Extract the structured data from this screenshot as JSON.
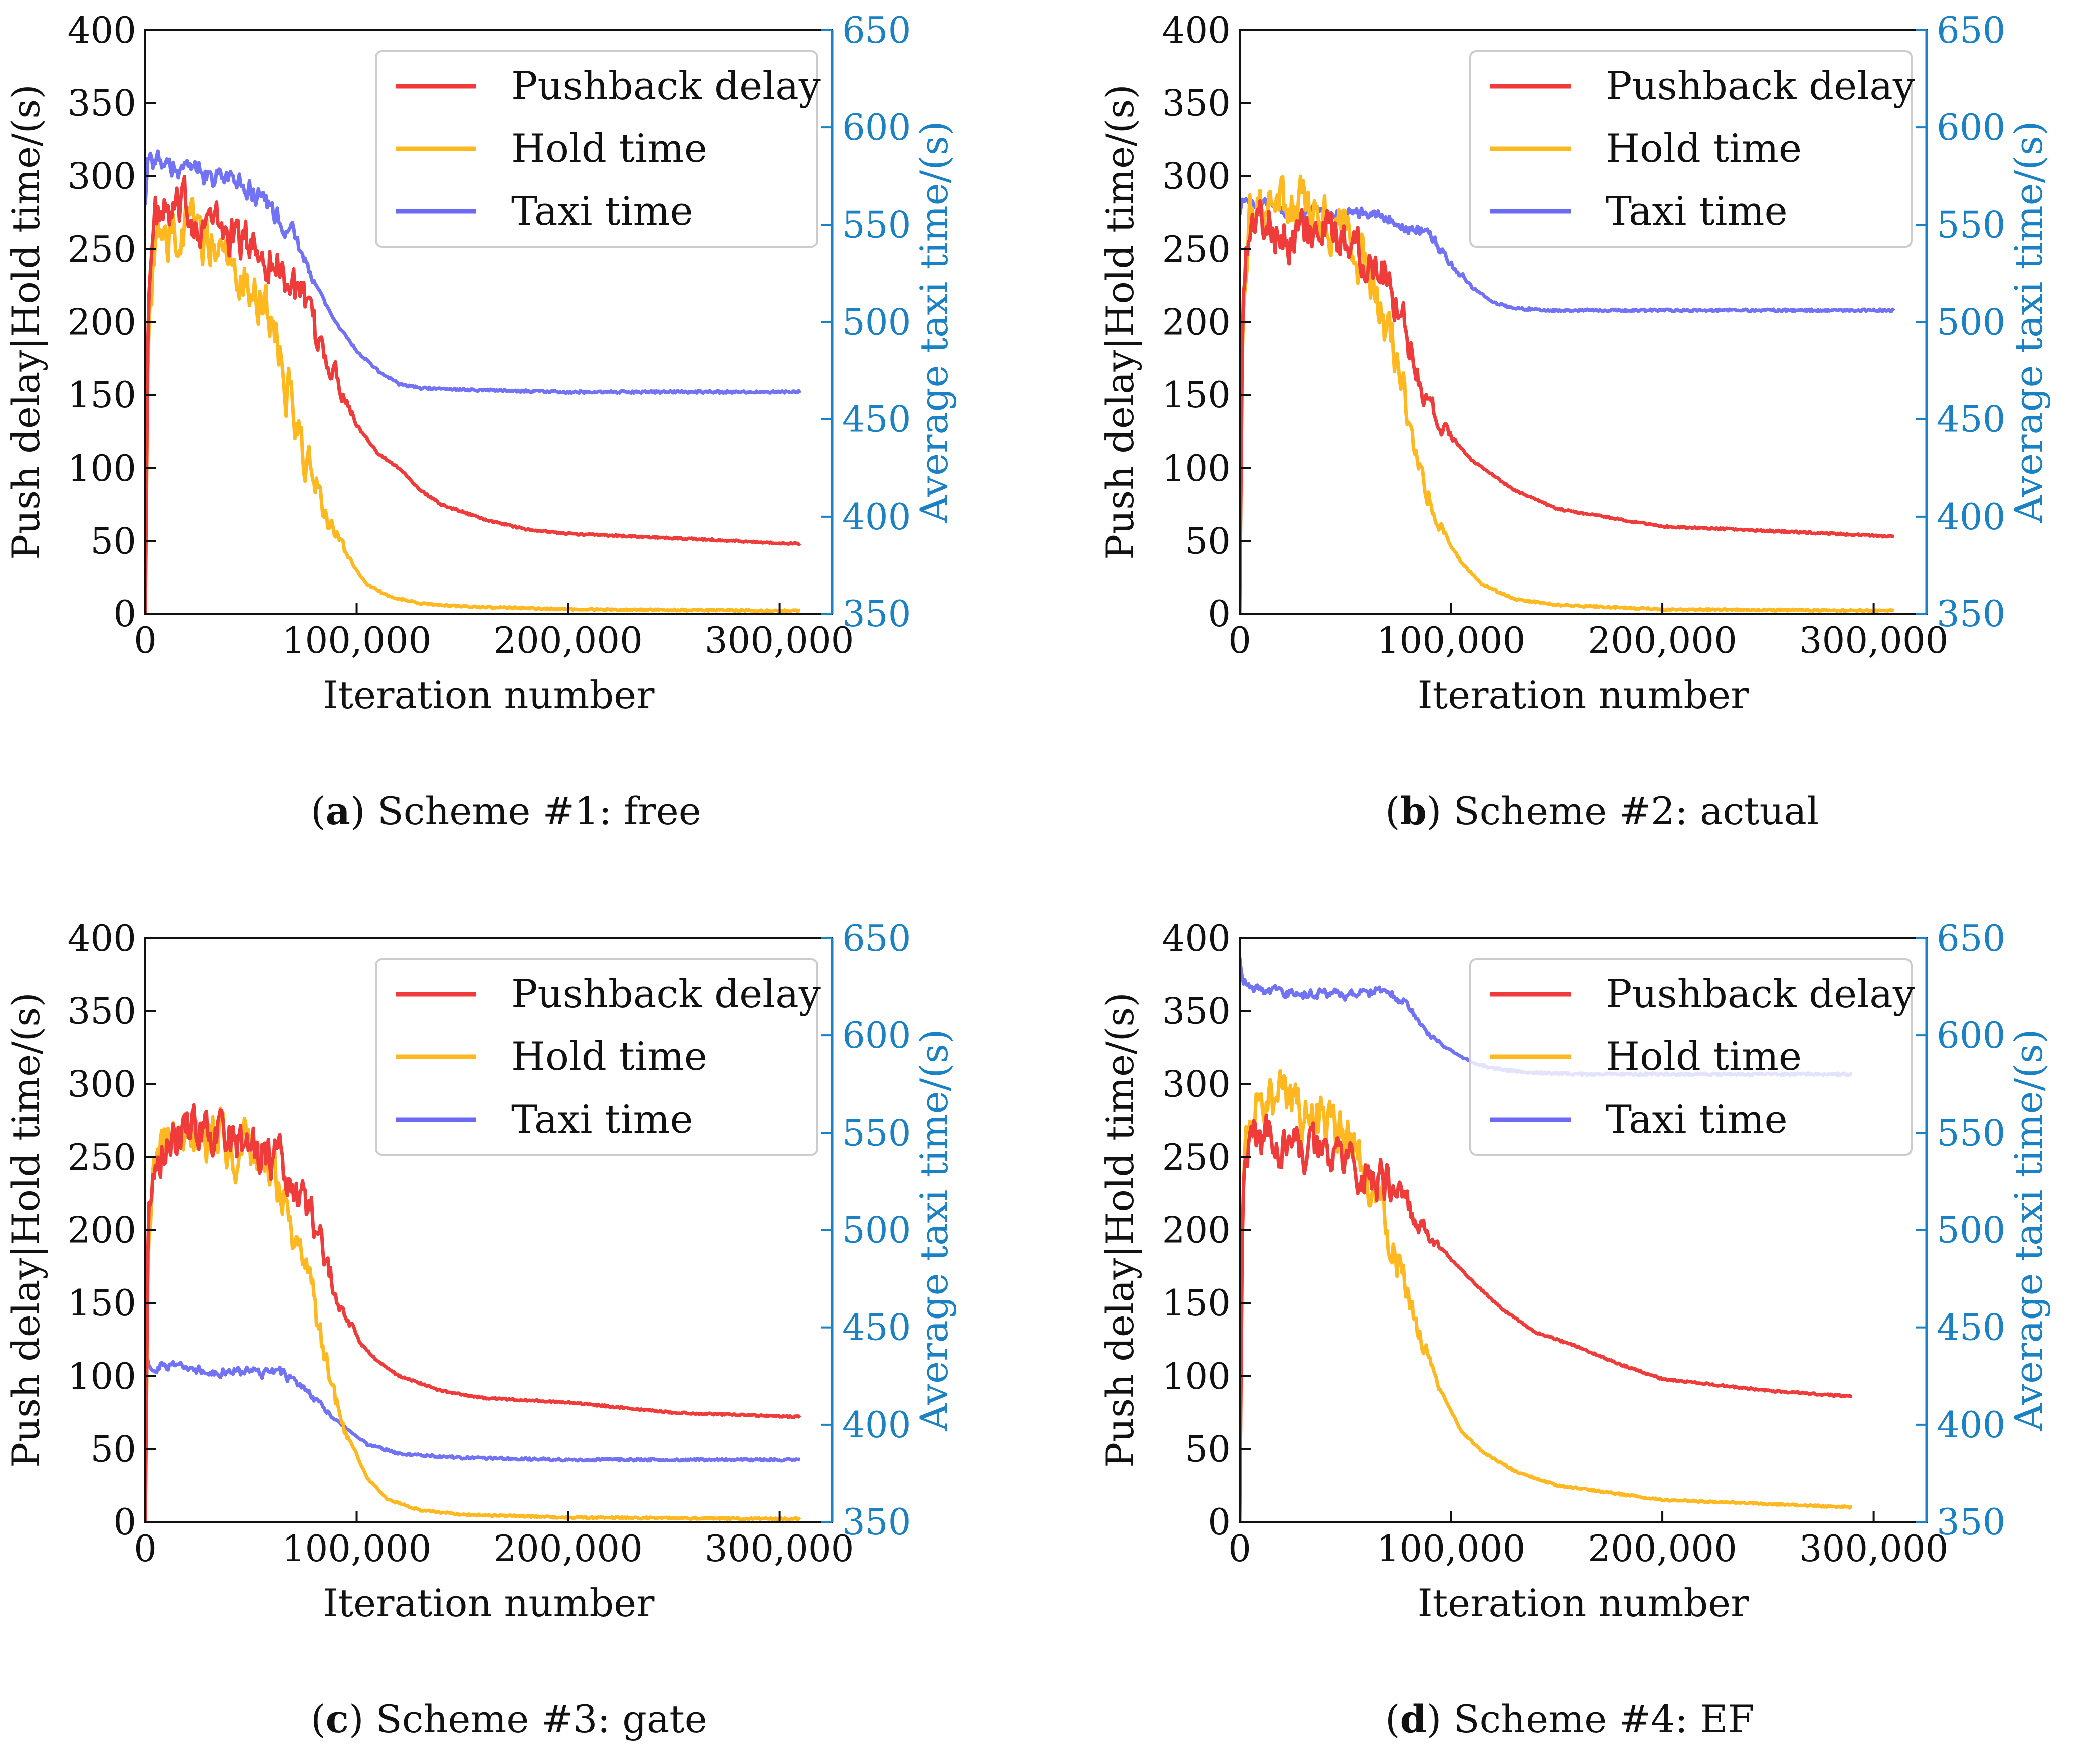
{
  "colors": {
    "pushback": "#f03b3b",
    "hold": "#ffb820",
    "taxi": "#6a6af5",
    "right_axis": "#1a82c4",
    "axis": "#111111"
  },
  "chart_data": [
    {
      "type": "line",
      "caption_letter": "a",
      "caption_text": ") Scheme #1: free",
      "xlabel": "Iteration number",
      "ylabel_left": "Push delay|Hold time/(s)",
      "ylabel_right": "Average taxi time/(s)",
      "xlim": [
        0,
        325000
      ],
      "ylim_left": [
        0,
        400
      ],
      "ylim_right": [
        350,
        650
      ],
      "xticks": [
        0,
        100000,
        200000,
        300000
      ],
      "xtick_labels": [
        "0",
        "100,000",
        "200,000",
        "300,000"
      ],
      "yticks_left": [
        0,
        50,
        100,
        150,
        200,
        250,
        300,
        350,
        400
      ],
      "ytick_labels_left": [
        "0",
        "50",
        "100",
        "150",
        "200",
        "250",
        "300",
        "350",
        "400"
      ],
      "yticks_right": [
        350,
        400,
        450,
        500,
        550,
        600,
        650
      ],
      "ytick_labels_right": [
        "350",
        "400",
        "450",
        "500",
        "550",
        "600",
        "650"
      ],
      "legend": [
        "Pushback delay",
        "Hold time",
        "Taxi time"
      ],
      "legend_position": "top-right",
      "series": [
        {
          "name": "Pushback delay",
          "axis": "left",
          "noise": 30,
          "noise_end": 75000,
          "x": [
            0,
            1500,
            5000,
            20000,
            40000,
            60000,
            70000,
            80000,
            90000,
            100000,
            110000,
            120000,
            130000,
            140000,
            160000,
            180000,
            200000,
            250000,
            310000
          ],
          "y": [
            0,
            230,
            270,
            275,
            260,
            245,
            225,
            190,
            165,
            130,
            110,
            100,
            85,
            75,
            65,
            58,
            55,
            52,
            48
          ]
        },
        {
          "name": "Hold time",
          "axis": "left",
          "noise": 35,
          "noise_end": 70000,
          "x": [
            0,
            1500,
            5000,
            20000,
            40000,
            55000,
            65000,
            75000,
            85000,
            95000,
            105000,
            115000,
            130000,
            150000,
            200000,
            310000
          ],
          "y": [
            0,
            210,
            255,
            262,
            250,
            220,
            170,
            110,
            70,
            40,
            20,
            12,
            7,
            5,
            3,
            2
          ]
        },
        {
          "name": "Taxi time",
          "axis": "right",
          "noise": 12,
          "noise_end": 60000,
          "x": [
            0,
            1500,
            5000,
            20000,
            40000,
            55000,
            70000,
            80000,
            90000,
            100000,
            110000,
            120000,
            130000,
            155000,
            200000,
            310000
          ],
          "y": [
            560,
            590,
            580,
            578,
            572,
            565,
            545,
            520,
            500,
            485,
            475,
            468,
            466,
            465,
            464,
            464
          ]
        }
      ]
    },
    {
      "type": "line",
      "caption_letter": "b",
      "caption_text": ") Scheme #2: actual",
      "xlabel": "Iteration number",
      "ylabel_left": "Push delay|Hold time/(s)",
      "ylabel_right": "Average taxi time/(s)",
      "xlim": [
        0,
        325000
      ],
      "ylim_left": [
        0,
        400
      ],
      "ylim_right": [
        350,
        650
      ],
      "xticks": [
        0,
        100000,
        200000,
        300000
      ],
      "xtick_labels": [
        "0",
        "100,000",
        "200,000",
        "300,000"
      ],
      "yticks_left": [
        0,
        50,
        100,
        150,
        200,
        250,
        300,
        350,
        400
      ],
      "ytick_labels_left": [
        "0",
        "50",
        "100",
        "150",
        "200",
        "250",
        "300",
        "350",
        "400"
      ],
      "yticks_right": [
        350,
        400,
        450,
        500,
        550,
        600,
        650
      ],
      "ytick_labels_right": [
        "350",
        "400",
        "450",
        "500",
        "550",
        "600",
        "650"
      ],
      "legend": [
        "Pushback delay",
        "Hold time",
        "Taxi time"
      ],
      "legend_position": "top-right",
      "series": [
        {
          "name": "Pushback delay",
          "axis": "left",
          "noise": 30,
          "noise_end": 75000,
          "x": [
            0,
            1500,
            5000,
            20000,
            40000,
            60000,
            70000,
            78000,
            85000,
            95000,
            110000,
            130000,
            150000,
            200000,
            250000,
            310000
          ],
          "y": [
            0,
            230,
            270,
            262,
            258,
            250,
            235,
            200,
            160,
            130,
            105,
            85,
            72,
            60,
            57,
            53
          ]
        },
        {
          "name": "Hold time",
          "axis": "left",
          "noise": 35,
          "noise_end": 72000,
          "x": [
            0,
            1500,
            5000,
            20000,
            40000,
            55000,
            65000,
            75000,
            85000,
            95000,
            105000,
            115000,
            130000,
            150000,
            200000,
            310000
          ],
          "y": [
            0,
            220,
            270,
            282,
            270,
            250,
            215,
            170,
            100,
            60,
            35,
            20,
            10,
            6,
            3,
            2
          ]
        },
        {
          "name": "Taxi time",
          "axis": "right",
          "noise": 6,
          "noise_end": 90000,
          "x": [
            0,
            1500,
            5000,
            20000,
            40000,
            60000,
            80000,
            90000,
            100000,
            110000,
            120000,
            130000,
            150000,
            200000,
            310000
          ],
          "y": [
            555,
            565,
            560,
            558,
            557,
            556,
            550,
            545,
            530,
            518,
            510,
            507,
            506,
            506,
            506
          ]
        }
      ]
    },
    {
      "type": "line",
      "caption_letter": "c",
      "caption_text": ") Scheme #3: gate",
      "xlabel": "Iteration number",
      "ylabel_left": "Push delay|Hold time/(s)",
      "ylabel_right": "Average taxi time/(s)",
      "xlim": [
        0,
        325000
      ],
      "ylim_left": [
        0,
        400
      ],
      "ylim_right": [
        350,
        650
      ],
      "xticks": [
        0,
        100000,
        200000,
        300000
      ],
      "xtick_labels": [
        "0",
        "100,000",
        "200,000",
        "300,000"
      ],
      "yticks_left": [
        0,
        50,
        100,
        150,
        200,
        250,
        300,
        350,
        400
      ],
      "ytick_labels_left": [
        "0",
        "50",
        "100",
        "150",
        "200",
        "250",
        "300",
        "350",
        "400"
      ],
      "yticks_right": [
        350,
        400,
        450,
        500,
        550,
        600,
        650
      ],
      "ytick_labels_right": [
        "350",
        "400",
        "450",
        "500",
        "550",
        "600",
        "650"
      ],
      "legend": [
        "Pushback delay",
        "Hold time",
        "Taxi time"
      ],
      "legend_position": "top-right",
      "series": [
        {
          "name": "Pushback delay",
          "axis": "left",
          "noise": 30,
          "noise_end": 75000,
          "x": [
            0,
            1500,
            5000,
            20000,
            40000,
            60000,
            70000,
            80000,
            90000,
            100000,
            110000,
            120000,
            140000,
            160000,
            200000,
            250000,
            310000
          ],
          "y": [
            0,
            230,
            255,
            270,
            262,
            250,
            235,
            205,
            160,
            125,
            110,
            100,
            90,
            85,
            82,
            75,
            72
          ]
        },
        {
          "name": "Hold time",
          "axis": "left",
          "noise": 35,
          "noise_end": 72000,
          "x": [
            0,
            1500,
            5000,
            20000,
            40000,
            55000,
            65000,
            75000,
            85000,
            95000,
            105000,
            115000,
            130000,
            150000,
            200000,
            310000
          ],
          "y": [
            0,
            210,
            250,
            268,
            262,
            250,
            220,
            175,
            110,
            60,
            30,
            15,
            8,
            5,
            3,
            2
          ]
        },
        {
          "name": "Taxi time",
          "axis": "right",
          "noise": 5,
          "noise_end": 70000,
          "x": [
            0,
            2000,
            10000,
            30000,
            50000,
            65000,
            75000,
            85000,
            95000,
            105000,
            120000,
            150000,
            200000,
            310000
          ],
          "y": [
            435,
            432,
            430,
            428,
            427,
            426,
            418,
            408,
            398,
            390,
            385,
            383,
            382,
            382
          ]
        }
      ]
    },
    {
      "type": "line",
      "caption_letter": "d",
      "caption_text": ") Scheme #4: EF",
      "xlabel": "Iteration number",
      "ylabel_left": "Push delay|Hold time/(s)",
      "ylabel_right": "Average taxi time/(s)",
      "xlim": [
        0,
        325000
      ],
      "ylim_left": [
        0,
        400
      ],
      "ylim_right": [
        350,
        650
      ],
      "xticks": [
        0,
        100000,
        200000,
        300000
      ],
      "xtick_labels": [
        "0",
        "100,000",
        "200,000",
        "300,000"
      ],
      "yticks_left": [
        0,
        50,
        100,
        150,
        200,
        250,
        300,
        350,
        400
      ],
      "ytick_labels_left": [
        "0",
        "50",
        "100",
        "150",
        "200",
        "250",
        "300",
        "350",
        "400"
      ],
      "yticks_right": [
        350,
        400,
        450,
        500,
        550,
        600,
        650
      ],
      "ytick_labels_right": [
        "350",
        "400",
        "450",
        "500",
        "550",
        "600",
        "650"
      ],
      "legend": [
        "Pushback delay",
        "Hold time",
        "Taxi time"
      ],
      "legend_position": "top-right",
      "series": [
        {
          "name": "Pushback delay",
          "axis": "left",
          "noise": 28,
          "noise_end": 70000,
          "x": [
            0,
            1500,
            5000,
            20000,
            40000,
            60000,
            70000,
            80000,
            90000,
            100000,
            110000,
            125000,
            140000,
            160000,
            180000,
            200000,
            250000,
            290000
          ],
          "y": [
            0,
            240,
            262,
            258,
            250,
            240,
            230,
            215,
            195,
            180,
            165,
            145,
            130,
            120,
            108,
            98,
            90,
            86
          ]
        },
        {
          "name": "Hold time",
          "axis": "left",
          "noise": 32,
          "noise_end": 68000,
          "x": [
            0,
            1500,
            5000,
            20000,
            40000,
            55000,
            65000,
            75000,
            85000,
            95000,
            105000,
            115000,
            130000,
            150000,
            200000,
            290000
          ],
          "y": [
            0,
            240,
            280,
            288,
            270,
            255,
            220,
            180,
            130,
            90,
            62,
            48,
            35,
            25,
            15,
            10
          ]
        },
        {
          "name": "Taxi time",
          "axis": "right",
          "noise": 5,
          "noise_end": 75000,
          "x": [
            0,
            1000,
            4000,
            15000,
            40000,
            60000,
            70000,
            80000,
            90000,
            100000,
            110000,
            120000,
            135000,
            160000,
            200000,
            290000
          ],
          "y": [
            640,
            630,
            625,
            622,
            621,
            622,
            624,
            615,
            600,
            592,
            586,
            583,
            581,
            580,
            580,
            580
          ]
        }
      ]
    }
  ]
}
